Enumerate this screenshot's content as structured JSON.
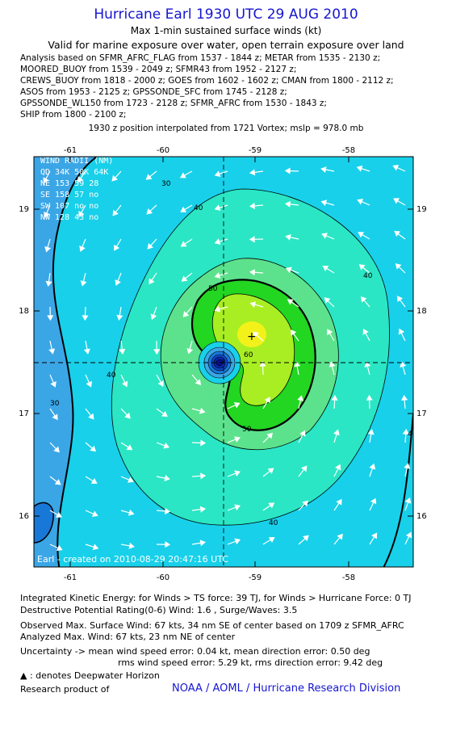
{
  "title": "Hurricane Earl 1930 UTC 29 AUG 2010",
  "subtitle": "Max 1-min sustained surface winds (kt)",
  "validity": "Valid for marine exposure over water, open terrain exposure over land",
  "analysis_lines": [
    "Analysis based on SFMR_AFRC_FLAG from 1537 - 1844 z; METAR from 1535 - 2130 z;",
    "MOORED_BUOY from 1539 - 2049 z; SFMR43 from 1952 - 2127 z;",
    "CREWS_BUOY from 1818 - 2000 z; GOES from 1602 - 1602 z; CMAN from 1800 - 2112 z;",
    "ASOS from 1953 - 2125 z; GPSSONDE_SFC from 1745 - 2128 z;",
    "GPSSONDE_WL150 from 1723 - 2128 z; SFMR_AFRC from 1530 - 1843 z;",
    "SHIP from 1800 - 2100 z;"
  ],
  "position_note": "1930 z position interpolated from 1721 Vortex; mslp = 978.0 mb",
  "map": {
    "lon_ticks": [
      "-61",
      "-60",
      "-59",
      "-58"
    ],
    "lat_ticks": [
      "19",
      "18",
      "17",
      "16"
    ],
    "contour_labels": [
      "40",
      "40",
      "40",
      "40",
      "50",
      "50",
      "60",
      "30",
      "30",
      "40"
    ],
    "center_marker": "+",
    "wind_radii": {
      "header": "WIND RADII (NM)",
      "columns": "QD  34K  50K  64K",
      "rows": [
        "NE  153  59  28",
        "SE  158  57  no",
        "SW  107  no  no",
        "NW  128  43  no"
      ]
    },
    "credit_line": "Earl - created on 2010-08-29 20:47:16 UTC",
    "colors": {
      "band_20_30": "#3aa6e6",
      "band_30_40": "#18d0ea",
      "band_40_50": "#2ae6c4",
      "band_50_60": "#5ce28c",
      "band_60_64": "#22d622",
      "band_64_70": "#a8ee22",
      "band_70": "#f2f21a"
    }
  },
  "footer": {
    "ike": "Integrated Kinetic Energy:  for Winds > TS force: 39 TJ,  for Winds > Hurricane Force: 0 TJ",
    "dpr": "Destructive Potential Rating(0-6)   Wind: 1.6 , Surge/Waves: 3.5",
    "observed": "Observed Max. Surface Wind: 67 kts, 34 nm SE of center based on 1709 z SFMR_AFRC",
    "analyzed": "Analyzed Max. Wind: 67 kts, 23 nm NE of center",
    "uncert1": "Uncertainty -> mean wind speed error: 0.04 kt,   mean direction error: 0.50 deg",
    "uncert2": "rms wind speed error: 5.29 kt,     rms direction error: 9.42 deg",
    "deepwater": ": denotes Deepwater Horizon",
    "research": "Research product of",
    "org": "NOAA / AOML / Hurricane Research Division"
  }
}
